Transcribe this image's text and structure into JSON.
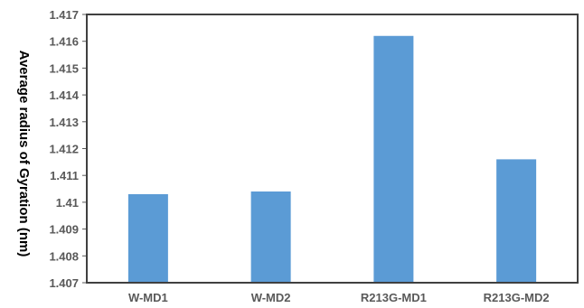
{
  "chart_data": {
    "type": "bar",
    "title": "",
    "xlabel": "",
    "ylabel": "Average radius of Gyration (nm)",
    "categories": [
      "W-MD1",
      "W-MD2",
      "R213G-MD1",
      "R213G-MD2"
    ],
    "values": [
      1.4103,
      1.4104,
      1.4162,
      1.4116
    ],
    "ylim": [
      1.407,
      1.417
    ],
    "yticks": [
      "1.407",
      "1.408",
      "1.409",
      "1.41",
      "1.411",
      "1.412",
      "1.413",
      "1.414",
      "1.415",
      "1.416",
      "1.417"
    ],
    "grid": false,
    "legend": "none",
    "colors": {
      "bar": "#5b9bd5",
      "axis": "#595959",
      "frame": "#404040"
    }
  }
}
